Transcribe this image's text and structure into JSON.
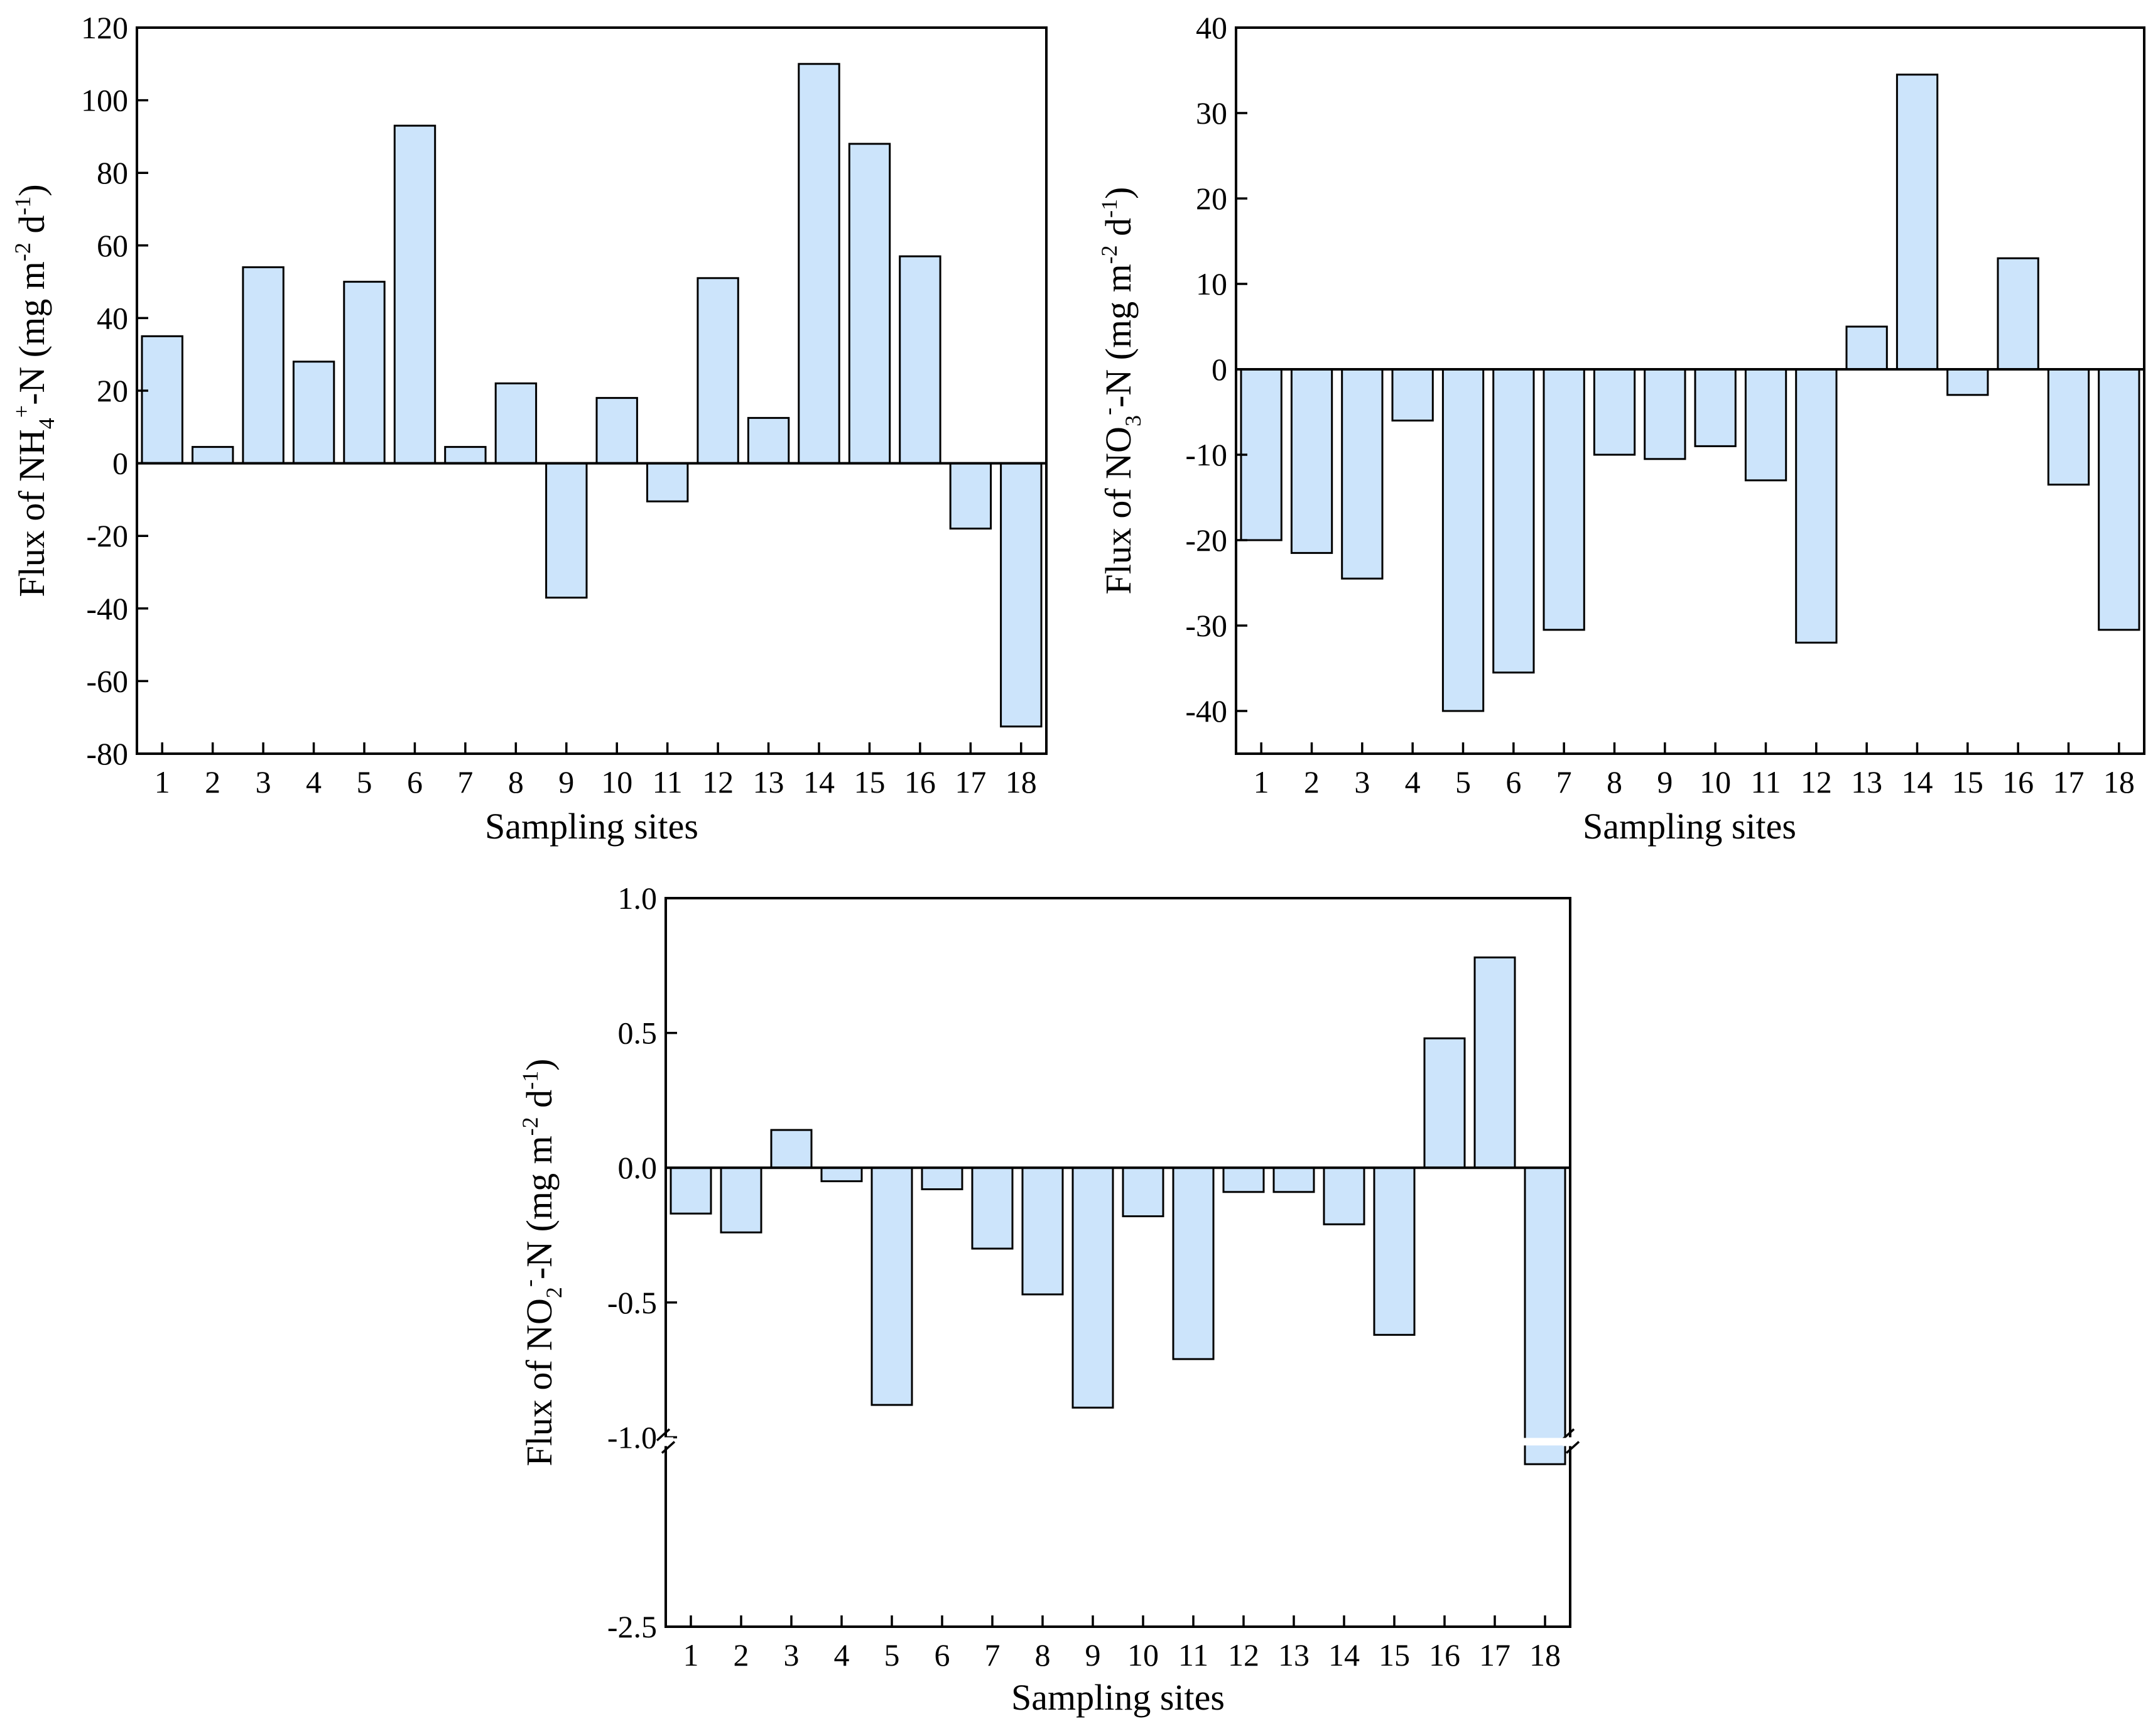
{
  "chart_data": [
    {
      "type": "bar",
      "title": "",
      "xlabel": "Sampling sites",
      "ylabel_parts": [
        "Flux of NH",
        "4",
        "+",
        "-N (mg m",
        "-2",
        " d",
        "-1",
        ")"
      ],
      "categories": [
        "1",
        "2",
        "3",
        "4",
        "5",
        "6",
        "7",
        "8",
        "9",
        "10",
        "11",
        "12",
        "13",
        "14",
        "15",
        "16",
        "17",
        "18"
      ],
      "values": [
        35,
        4.5,
        54,
        28,
        50,
        93,
        4.5,
        22,
        -37,
        18,
        -10.5,
        51,
        12.5,
        110,
        88,
        57,
        -18,
        -72.5
      ],
      "ylim": [
        -80,
        120
      ],
      "yticks": [
        -80,
        -60,
        -40,
        -20,
        0,
        20,
        40,
        60,
        80,
        100,
        120
      ],
      "ytick_labels": [
        "-80",
        "-60",
        "-40",
        "-20",
        "0",
        "20",
        "40",
        "60",
        "80",
        "100",
        "120"
      ],
      "bar_color": "#cce4fb"
    },
    {
      "type": "bar",
      "title": "",
      "xlabel": "Sampling sites",
      "ylabel_parts": [
        "Flux of NO",
        "3",
        "-",
        "-N (mg m",
        "-2",
        " d",
        "-1",
        ")"
      ],
      "categories": [
        "1",
        "2",
        "3",
        "4",
        "5",
        "6",
        "7",
        "8",
        "9",
        "10",
        "11",
        "12",
        "13",
        "14",
        "15",
        "16",
        "17",
        "18"
      ],
      "values": [
        -20,
        -21.5,
        -24.5,
        -6,
        -40,
        -35.5,
        -30.5,
        -10,
        -10.5,
        -9,
        -13,
        -32,
        5,
        34.5,
        -3,
        13,
        -13.5,
        -30.5
      ],
      "ylim": [
        -45,
        40
      ],
      "yticks": [
        -40,
        -30,
        -20,
        -10,
        0,
        10,
        20,
        30,
        40
      ],
      "ytick_labels": [
        "-40",
        "-30",
        "-20",
        "-10",
        "0",
        "10",
        "20",
        "30",
        "40"
      ],
      "bar_color": "#cce4fb"
    },
    {
      "type": "bar",
      "title": "",
      "xlabel": "Sampling sites",
      "ylabel_parts": [
        "Flux of NO",
        "2",
        "-",
        "-N (mg m",
        "-2",
        " d",
        "-1",
        ")"
      ],
      "categories": [
        "1",
        "2",
        "3",
        "4",
        "5",
        "6",
        "7",
        "8",
        "9",
        "10",
        "11",
        "12",
        "13",
        "14",
        "15",
        "16",
        "17",
        "18"
      ],
      "values": [
        -0.17,
        -0.24,
        0.14,
        -0.05,
        -0.88,
        -0.08,
        -0.3,
        -0.47,
        -0.89,
        -0.18,
        -0.71,
        -0.09,
        -0.09,
        -0.21,
        -0.62,
        0.48,
        0.78,
        -2.05
      ],
      "ylim": [
        -2.5,
        1.0
      ],
      "axis_break": [
        -2.0,
        -1.0
      ],
      "yticks": [
        -2.5,
        -1.0,
        -0.5,
        0.0,
        0.5,
        1.0
      ],
      "ytick_labels": [
        "-2.5",
        "-1.0",
        "-0.5",
        "0.0",
        "0.5",
        "1.0"
      ],
      "bar_color": "#cce4fb"
    }
  ]
}
